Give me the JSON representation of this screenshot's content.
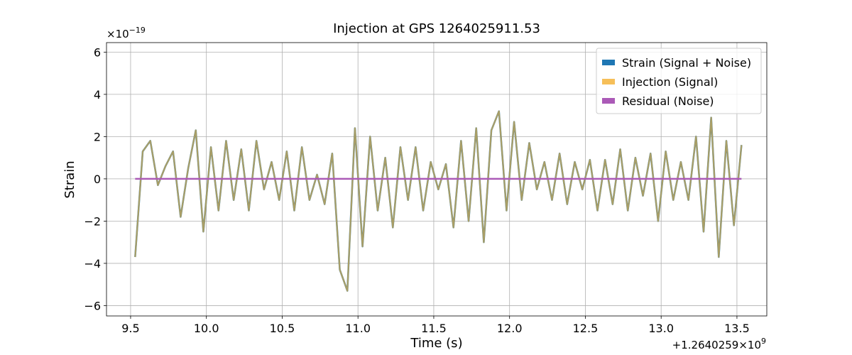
{
  "chart_data": {
    "type": "line",
    "title": "Injection at GPS 1264025911.53",
    "x_label": "Time (s)",
    "y_label": "Strain",
    "x_offset": {
      "base": "+1.2640259×10",
      "exponent": "9"
    },
    "y_scale": {
      "base": "×10",
      "exponent": "−19"
    },
    "x": [
      9.53,
      9.58,
      9.63,
      9.68,
      9.73,
      9.78,
      9.83,
      9.88,
      9.93,
      9.98,
      10.03,
      10.08,
      10.13,
      10.18,
      10.23,
      10.28,
      10.33,
      10.38,
      10.43,
      10.48,
      10.53,
      10.58,
      10.63,
      10.68,
      10.73,
      10.78,
      10.83,
      10.88,
      10.93,
      10.98,
      11.03,
      11.08,
      11.13,
      11.18,
      11.23,
      11.28,
      11.33,
      11.38,
      11.43,
      11.48,
      11.53,
      11.58,
      11.63,
      11.68,
      11.73,
      11.78,
      11.83,
      11.88,
      11.93,
      11.98,
      12.03,
      12.08,
      12.13,
      12.18,
      12.23,
      12.28,
      12.33,
      12.38,
      12.43,
      12.48,
      12.53,
      12.58,
      12.63,
      12.68,
      12.73,
      12.78,
      12.83,
      12.88,
      12.93,
      12.98,
      13.03,
      13.08,
      13.13,
      13.18,
      13.23,
      13.28,
      13.33,
      13.38,
      13.43,
      13.48,
      13.53
    ],
    "series": [
      {
        "name": "Strain (Signal + Noise)",
        "color": "#1f77b4",
        "values": [
          -3.7,
          1.3,
          1.8,
          -0.3,
          0.6,
          1.3,
          -1.8,
          0.5,
          2.3,
          -2.5,
          1.5,
          -1.5,
          1.8,
          -1.0,
          1.4,
          -1.5,
          1.8,
          -0.5,
          0.8,
          -1.0,
          1.3,
          -1.5,
          1.5,
          -1.0,
          0.2,
          -1.2,
          1.2,
          -4.3,
          -5.3,
          2.4,
          -3.2,
          2.0,
          -1.5,
          1.0,
          -2.3,
          1.5,
          -1.0,
          1.5,
          -1.5,
          0.8,
          -0.5,
          0.7,
          -2.3,
          1.8,
          -2.0,
          2.4,
          -3.0,
          2.3,
          3.2,
          -1.5,
          2.7,
          -1.0,
          1.7,
          -0.5,
          0.8,
          -1.0,
          1.2,
          -1.2,
          0.8,
          -0.5,
          0.9,
          -1.5,
          0.9,
          -1.2,
          1.4,
          -1.5,
          1.0,
          -0.8,
          1.2,
          -2.0,
          1.3,
          -1.0,
          0.8,
          -1.0,
          2.0,
          -2.5,
          2.9,
          -3.7,
          1.8,
          -2.2,
          1.6
        ]
      },
      {
        "name": "Injection (Signal)",
        "color": "#f5b43c",
        "values": [
          -3.7,
          1.3,
          1.8,
          -0.3,
          0.6,
          1.3,
          -1.8,
          0.5,
          2.3,
          -2.5,
          1.5,
          -1.5,
          1.8,
          -1.0,
          1.4,
          -1.5,
          1.8,
          -0.5,
          0.8,
          -1.0,
          1.3,
          -1.5,
          1.5,
          -1.0,
          0.2,
          -1.2,
          1.2,
          -4.3,
          -5.3,
          2.4,
          -3.2,
          2.0,
          -1.5,
          1.0,
          -2.3,
          1.5,
          -1.0,
          1.5,
          -1.5,
          0.8,
          -0.5,
          0.7,
          -2.3,
          1.8,
          -2.0,
          2.4,
          -3.0,
          2.3,
          3.2,
          -1.5,
          2.7,
          -1.0,
          1.7,
          -0.5,
          0.8,
          -1.0,
          1.2,
          -1.2,
          0.8,
          -0.5,
          0.9,
          -1.5,
          0.9,
          -1.2,
          1.4,
          -1.5,
          1.0,
          -0.8,
          1.2,
          -2.0,
          1.3,
          -1.0,
          0.8,
          -1.0,
          2.0,
          -2.5,
          2.9,
          -3.7,
          1.8,
          -2.2,
          1.6
        ]
      },
      {
        "name": "Residual (Noise)",
        "color": "#ab5ab7",
        "values": [
          0,
          0,
          0,
          0,
          0,
          0,
          0,
          0,
          0,
          0,
          0,
          0,
          0,
          0,
          0,
          0,
          0,
          0,
          0,
          0,
          0,
          0,
          0,
          0,
          0,
          0,
          0,
          0,
          0,
          0,
          0,
          0,
          0,
          0,
          0,
          0,
          0,
          0,
          0,
          0,
          0,
          0,
          0,
          0,
          0,
          0,
          0,
          0,
          0,
          0,
          0,
          0,
          0,
          0,
          0,
          0,
          0,
          0,
          0,
          0,
          0,
          0,
          0,
          0,
          0,
          0,
          0,
          0,
          0,
          0,
          0,
          0,
          0,
          0,
          0,
          0,
          0,
          0,
          0,
          0,
          0
        ]
      }
    ],
    "xlim": [
      9.341,
      13.697
    ],
    "ylim": [
      -6.49,
      6.45
    ],
    "xticks": [
      9.5,
      {
        "value": 10.0,
        "label": "10.0"
      },
      10.5,
      {
        "value": 11.0,
        "label": "11.0"
      },
      11.5,
      {
        "value": 12.0,
        "label": "12.0"
      },
      12.5,
      {
        "value": 13.0,
        "label": "13.0"
      },
      13.5
    ],
    "yticks": [
      {
        "value": -6,
        "label": "−6"
      },
      {
        "value": -4,
        "label": "−4"
      },
      {
        "value": -2,
        "label": "−2"
      },
      0,
      2,
      4,
      6
    ],
    "grid": true,
    "legend": "upper right"
  }
}
